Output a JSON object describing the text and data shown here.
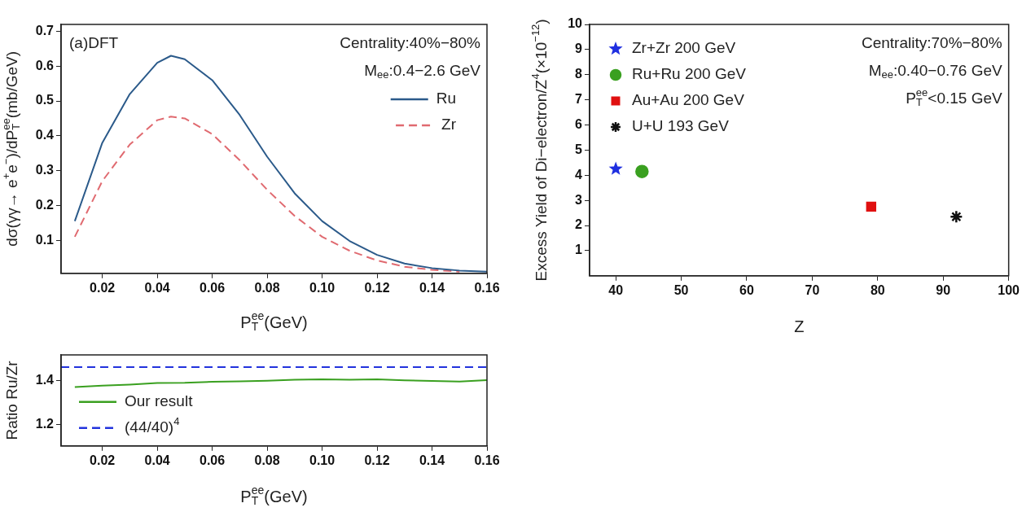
{
  "chart_data": [
    {
      "type": "line",
      "xlabel": "P$^{ee}$$_{T}$(GeV)",
      "ylabel": "dσ(γγ→ e$^{+}$e$^{−}$)/dP$^{ee}$$_{T}$(mb/GeV)",
      "annotations": [
        "(a)DFT",
        "Centrality:40%−80%",
        "M$_{ee}$:0.4−2.6 GeV"
      ],
      "legend": "top right",
      "marker": "none",
      "x": [
        0.01,
        0.02,
        0.03,
        0.04,
        0.045,
        0.05,
        0.06,
        0.07,
        0.08,
        0.09,
        0.1,
        0.11,
        0.12,
        0.13,
        0.14,
        0.15,
        0.16
      ],
      "series": [
        {
          "name": "Ru",
          "color": "#2b5a8a",
          "line_style": "solid",
          "values": [
            0.155,
            0.38,
            0.52,
            0.61,
            0.63,
            0.62,
            0.56,
            0.46,
            0.34,
            0.235,
            0.155,
            0.098,
            0.058,
            0.033,
            0.02,
            0.013,
            0.01
          ]
        },
        {
          "name": "Zr",
          "color": "#e06a70",
          "line_style": "dashed",
          "values": [
            0.11,
            0.27,
            0.375,
            0.445,
            0.455,
            0.45,
            0.405,
            0.33,
            0.245,
            0.17,
            0.11,
            0.07,
            0.042,
            0.024,
            0.015,
            0.01,
            null
          ]
        }
      ],
      "xlim": [
        0.005,
        0.16
      ],
      "ylim": [
        0.005,
        0.72
      ],
      "xticks": [
        0.02,
        0.04,
        0.06,
        0.08,
        {
          "value": 0.1,
          "label": "0.10"
        },
        0.12,
        0.14,
        0.16
      ],
      "yticks": [
        0.1,
        0.2,
        0.3,
        0.4,
        0.5,
        0.6,
        0.7
      ]
    },
    {
      "type": "line",
      "xlabel": "P$^{ee}$$_{T}$(GeV)",
      "ylabel": "Ratio Ru/Zr",
      "legend": "bottom left",
      "marker": "none",
      "series": [
        {
          "name": "Our result",
          "color": "#3aa020",
          "line_style": "solid",
          "x": [
            0.01,
            0.02,
            0.03,
            0.04,
            0.05,
            0.06,
            0.07,
            0.08,
            0.09,
            0.1,
            0.11,
            0.12,
            0.13,
            0.14,
            0.15,
            0.16
          ],
          "values": [
            1.372,
            1.378,
            1.383,
            1.39,
            1.391,
            1.396,
            1.398,
            1.401,
            1.405,
            1.407,
            1.405,
            1.407,
            1.403,
            1.4,
            1.397,
            1.404
          ]
        },
        {
          "name": "(44/40)$^{4}$",
          "color": "#2233dd",
          "line_style": "dashed",
          "x": [
            0.005,
            0.16
          ],
          "values": [
            1.464,
            1.464
          ]
        }
      ],
      "xlim": [
        0.005,
        0.16
      ],
      "ylim": [
        1.1,
        1.52
      ],
      "xticks": [
        0.02,
        0.04,
        0.06,
        0.08,
        {
          "value": 0.1,
          "label": "0.10"
        },
        0.12,
        0.14,
        0.16
      ],
      "yticks": [
        1.2,
        1.4
      ]
    },
    {
      "type": "scatter",
      "xlabel": "Z",
      "ylabel": "Excess Yield of Di−electron/Z$^{4}$(×10$^{−12}$)",
      "annotations": [
        "Centrality:70%−80%",
        "M$_{ee}$:0.40−0.76 GeV",
        "P$^{ee}$$_{T}$<0.15 GeV"
      ],
      "legend": "top left",
      "series": [
        {
          "name": "Zr+Zr 200 GeV",
          "color": "#1f2fe0",
          "marker": "star",
          "x": [
            40
          ],
          "values": [
            4.25
          ]
        },
        {
          "name": "Ru+Ru 200 GeV",
          "color": "#3aa020",
          "marker": "circle",
          "x": [
            44
          ],
          "values": [
            4.15
          ]
        },
        {
          "name": "Au+Au 200 GeV",
          "color": "#e01010",
          "marker": "square",
          "x": [
            79
          ],
          "values": [
            2.75
          ]
        },
        {
          "name": "U+U 193 GeV",
          "color": "#111111",
          "marker": "cross",
          "x": [
            92
          ],
          "values": [
            2.35
          ]
        }
      ],
      "xlim": [
        36,
        100
      ],
      "ylim": [
        0,
        10
      ],
      "xticks": [
        40,
        50,
        60,
        70,
        80,
        90,
        100
      ],
      "yticks": [
        1,
        2,
        3,
        4,
        5,
        6,
        7,
        8,
        9,
        10
      ]
    }
  ]
}
